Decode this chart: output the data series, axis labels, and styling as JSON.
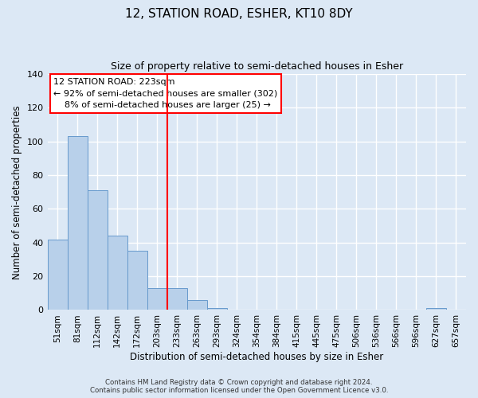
{
  "title": "12, STATION ROAD, ESHER, KT10 8DY",
  "subtitle": "Size of property relative to semi-detached houses in Esher",
  "xlabel": "Distribution of semi-detached houses by size in Esher",
  "ylabel": "Number of semi-detached properties",
  "bar_labels": [
    "51sqm",
    "81sqm",
    "112sqm",
    "142sqm",
    "172sqm",
    "203sqm",
    "233sqm",
    "263sqm",
    "293sqm",
    "324sqm",
    "354sqm",
    "384sqm",
    "415sqm",
    "445sqm",
    "475sqm",
    "506sqm",
    "536sqm",
    "566sqm",
    "596sqm",
    "627sqm",
    "657sqm"
  ],
  "bar_heights": [
    42,
    103,
    71,
    44,
    35,
    13,
    13,
    6,
    1,
    0,
    0,
    0,
    0,
    0,
    0,
    0,
    0,
    0,
    0,
    1,
    0
  ],
  "bar_color": "#b8d0ea",
  "bar_edge_color": "#6699cc",
  "background_color": "#dce8f5",
  "grid_color": "#ffffff",
  "vline_color": "red",
  "ylim": [
    0,
    140
  ],
  "yticks": [
    0,
    20,
    40,
    60,
    80,
    100,
    120,
    140
  ],
  "annotation_title": "12 STATION ROAD: 223sqm",
  "annotation_line1": "← 92% of semi-detached houses are smaller (302)",
  "annotation_line2": "    8% of semi-detached houses are larger (25) →",
  "annotation_box_color": "#ffffff",
  "annotation_box_edge": "red",
  "footer_line1": "Contains HM Land Registry data © Crown copyright and database right 2024.",
  "footer_line2": "Contains public sector information licensed under the Open Government Licence v3.0."
}
